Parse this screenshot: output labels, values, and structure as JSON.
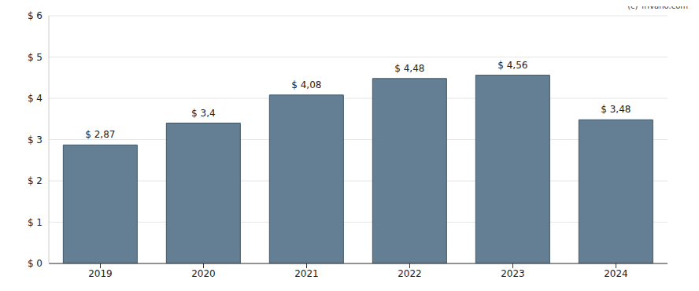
{
  "chart_data": {
    "type": "bar",
    "annotations": [
      "(c) Trivano.com"
    ],
    "categories": [
      "2019",
      "2020",
      "2021",
      "2022",
      "2023",
      "2024"
    ],
    "values": [
      2.87,
      3.4,
      4.08,
      4.48,
      4.56,
      3.48
    ],
    "value_labels": [
      "$ 2,87",
      "$ 3,4",
      "$ 4,08",
      "$ 4,48",
      "$ 4,56",
      "$ 3,48"
    ],
    "data_labels": true,
    "color": "#647f94",
    "ylim": [
      0,
      6
    ],
    "yticks": [
      {
        "value": 0,
        "label": "$ 0"
      },
      {
        "value": 1,
        "label": "$ 1"
      },
      {
        "value": 2,
        "label": "$ 2"
      },
      {
        "value": 3,
        "label": "$ 3"
      },
      {
        "value": 4,
        "label": "$ 4"
      },
      {
        "value": 5,
        "label": "$ 5"
      },
      {
        "value": 6,
        "label": "$ 6"
      }
    ],
    "grid": true
  }
}
